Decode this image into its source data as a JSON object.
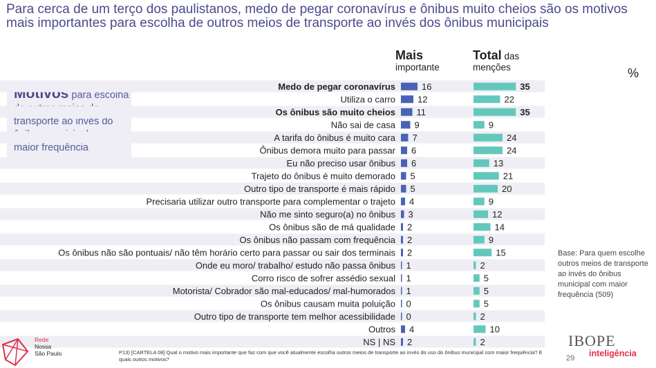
{
  "title": "Para cerca de um terço dos paulistanos, medo de pegar coronavírus e ônibus muito cheios são os motivos mais importantes para escolha de outros meios de transporte ao invés dos ônibus municipais",
  "motivos_box": {
    "heading": "Motivos",
    "text": "para escolha de outros meios de transporte ao invés do ônibus municipal com maior frequência"
  },
  "columns": {
    "mais_strong": "Mais",
    "mais_rest": "importante",
    "total_strong": "Total",
    "total_rest1": "das",
    "total_rest2": "menções",
    "unit": "%"
  },
  "colors": {
    "mais": "#4a62b3",
    "total": "#64c7bc",
    "row_band": "#eeeef4",
    "title": "#4b4a8c",
    "brand_red": "#e0314a"
  },
  "chart_data": {
    "type": "bar",
    "categories": [
      "Medo de pegar coronavírus",
      "Utiliza o carro",
      "Os ônibus são muito cheios",
      "Não sai de casa",
      "A tarifa do ônibus é muito cara",
      "Ônibus demora muito para passar",
      "Eu não preciso usar ônibus",
      "Trajeto do ônibus é muito demorado",
      "Outro tipo de transporte é mais rápido",
      "Precisaria utilizar outro transporte para complementar o trajeto",
      "Não me sinto seguro(a) no ônibus",
      "Os ônibus são de má qualidade",
      "Os ônibus não passam com frequência",
      "Os ônibus não são pontuais/ não têm horário certo para passar ou sair dos terminais",
      "Onde eu moro/ trabalho/ estudo não passa ônibus",
      "Corro risco de sofrer assédio sexual",
      "Motorista/ Cobrador são mal-educados/ mal-humorados",
      "Os ônibus causam muita poluição",
      "Outro tipo de transporte tem melhor acessibilidade",
      "Outros",
      "NS | NS"
    ],
    "bold_categories": [
      0,
      2
    ],
    "series": [
      {
        "name": "Mais importante",
        "values": [
          16,
          12,
          11,
          9,
          7,
          6,
          6,
          5,
          5,
          4,
          3,
          2,
          2,
          2,
          1,
          1,
          1,
          0,
          0,
          4,
          2
        ]
      },
      {
        "name": "Total das menções",
        "values": [
          35,
          22,
          35,
          9,
          24,
          24,
          13,
          21,
          20,
          9,
          12,
          14,
          9,
          15,
          2,
          5,
          5,
          5,
          2,
          10,
          2
        ]
      }
    ],
    "bold_total_values": [
      0,
      2
    ]
  },
  "base_note": "Base: Para quem escolhe outros meios de transporte ao invés do ônibus municipal com maior frequência (509)",
  "footnote": "P13) [CARTELA 08] Qual o motivo mais importante que faz com que você atualmente escolha outros meios de transporte ao invés do uso do ônibus municipal com maior frequência? E quais outros motivos?",
  "brand": {
    "rede": "Rede",
    "nossa": "Nossa",
    "sao_paulo": "São Paulo",
    "ibope": "IBOPE",
    "inteligencia": "inteligência"
  },
  "page_number": "29"
}
